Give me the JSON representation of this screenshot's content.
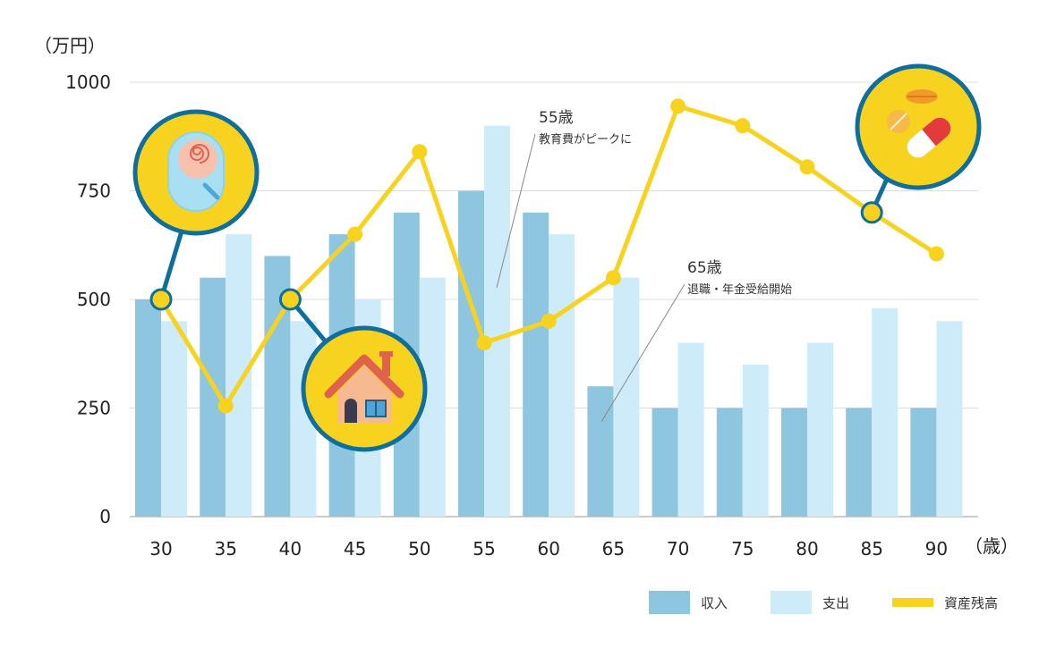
{
  "chart_data": {
    "type": "bar",
    "y_unit": "（万円）",
    "x_unit": "（歳）",
    "categories": [
      "30",
      "35",
      "40",
      "45",
      "50",
      "55",
      "60",
      "65",
      "70",
      "75",
      "80",
      "85",
      "90"
    ],
    "y_ticks": [
      "0",
      "250",
      "500",
      "750",
      "1000"
    ],
    "ylim": [
      0,
      1000
    ],
    "grid": true,
    "series": [
      {
        "name": "収入",
        "type": "bar",
        "color": "#8ec6e0",
        "values": [
          500,
          550,
          600,
          650,
          700,
          750,
          700,
          300,
          250,
          250,
          250,
          250,
          250
        ]
      },
      {
        "name": "支出",
        "type": "bar",
        "color": "#cdebf8",
        "values": [
          450,
          650,
          450,
          500,
          550,
          900,
          650,
          550,
          400,
          350,
          400,
          480,
          450
        ]
      },
      {
        "name": "資産残高",
        "type": "line",
        "color": "#f7d21f",
        "values": [
          500,
          255,
          500,
          650,
          840,
          400,
          450,
          550,
          945,
          900,
          805,
          700,
          605
        ]
      }
    ],
    "annotations": [
      {
        "age": "55歳",
        "text": "教育費がピークに"
      },
      {
        "age": "65歳",
        "text": "退職・年金受給開始"
      }
    ],
    "icons": [
      "baby-icon",
      "house-icon",
      "medicine-icon"
    ],
    "legend_position": "bottom-right"
  }
}
